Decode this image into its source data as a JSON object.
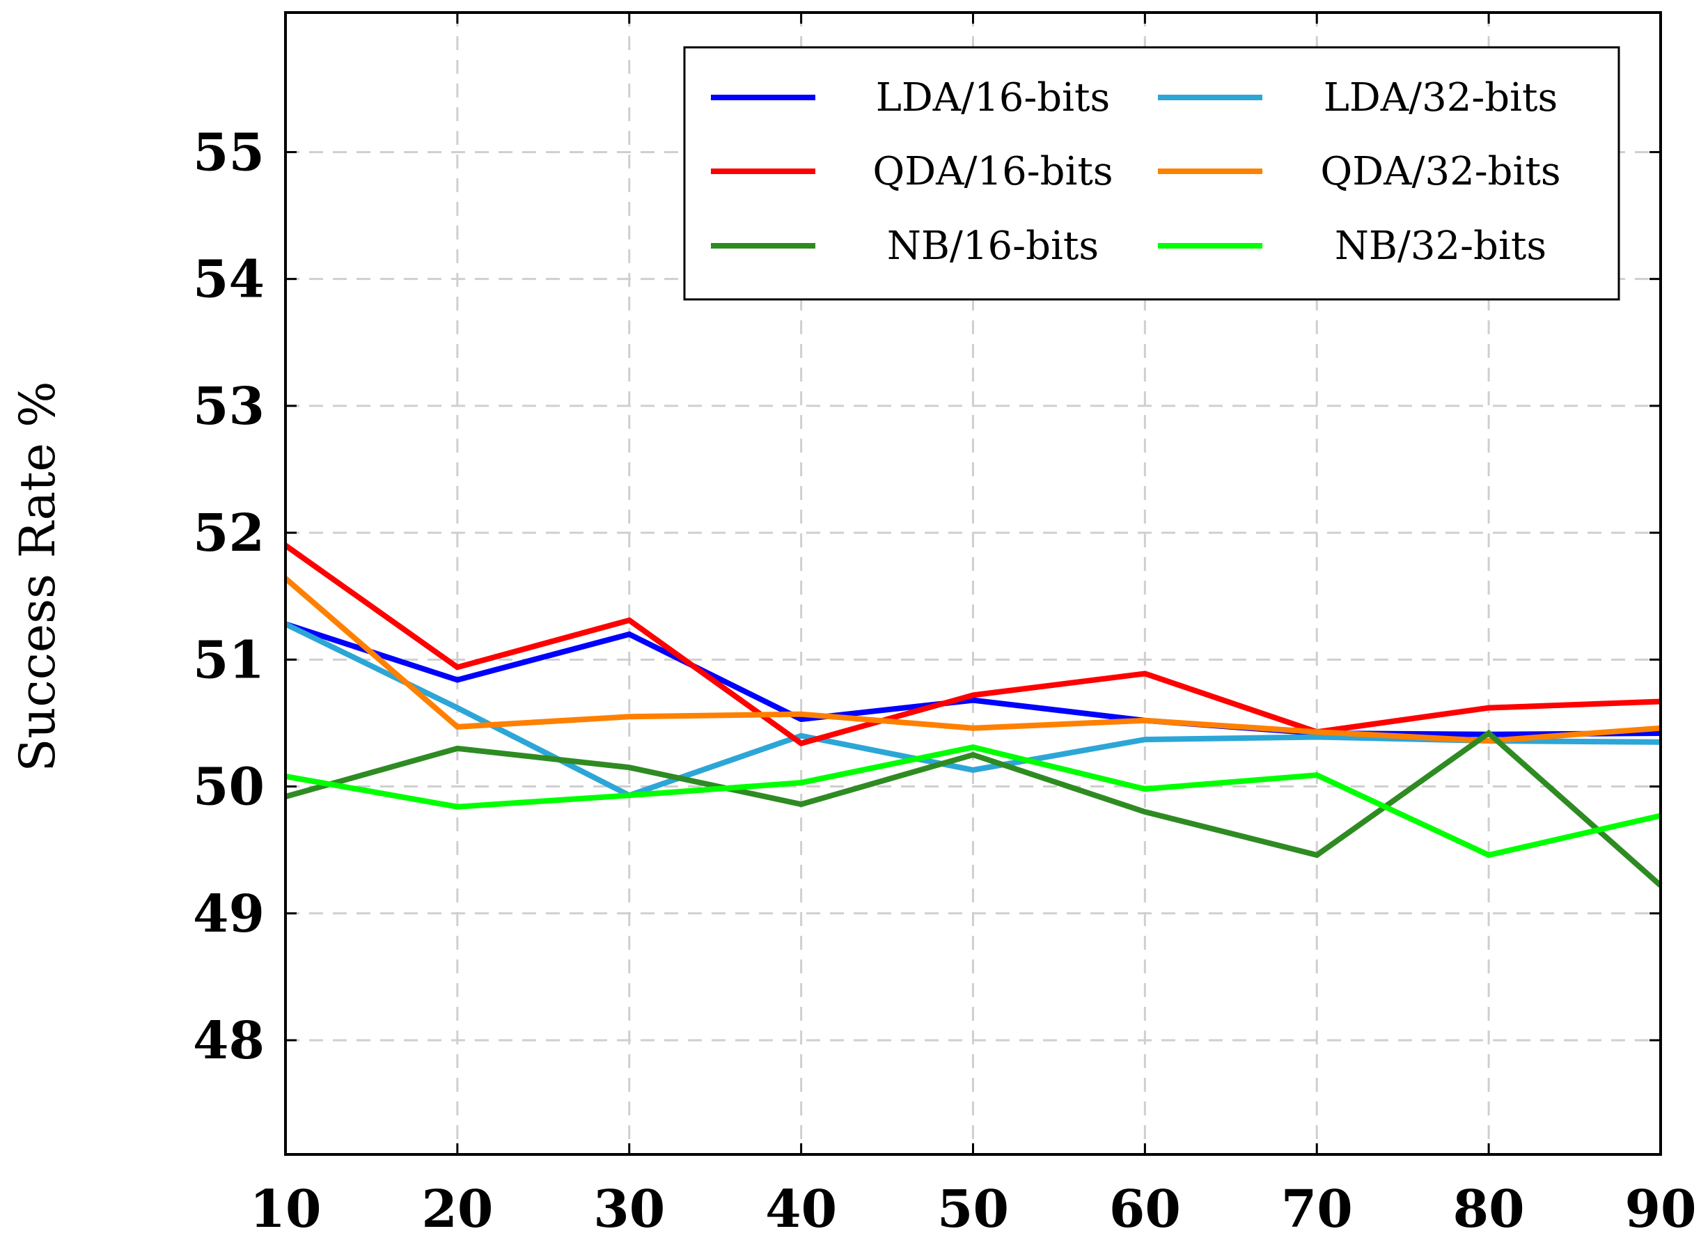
{
  "chart_data": {
    "type": "line",
    "title": "",
    "xlabel": "",
    "ylabel": "Success Rate %",
    "x": [
      10,
      20,
      30,
      40,
      50,
      60,
      70,
      80,
      90
    ],
    "xlim": [
      10,
      90
    ],
    "ylim": [
      47.1,
      56.1
    ],
    "yticks": [
      48,
      49,
      50,
      51,
      52,
      53,
      54,
      55
    ],
    "xticks": [
      10,
      20,
      30,
      40,
      50,
      60,
      70,
      80,
      90
    ],
    "grid": true,
    "legend_position": "top-right",
    "series": [
      {
        "name": "LDA/16-bits",
        "color": "#0000ff",
        "values": [
          51.28,
          50.84,
          51.2,
          50.53,
          50.68,
          50.52,
          50.42,
          50.41,
          50.42
        ]
      },
      {
        "name": "LDA/32-bits",
        "color": "#2ca6d6",
        "values": [
          51.28,
          50.62,
          49.93,
          50.4,
          50.13,
          50.37,
          50.39,
          50.36,
          50.35
        ]
      },
      {
        "name": "QDA/16-bits",
        "color": "#ff0000",
        "values": [
          51.9,
          50.94,
          51.31,
          50.34,
          50.72,
          50.89,
          50.43,
          50.62,
          50.67
        ]
      },
      {
        "name": "QDA/32-bits",
        "color": "#ff8000",
        "values": [
          51.64,
          50.47,
          50.55,
          50.57,
          50.46,
          50.52,
          50.43,
          50.36,
          50.46
        ]
      },
      {
        "name": "NB/16-bits",
        "color": "#2e8b22",
        "values": [
          49.92,
          50.3,
          50.15,
          49.86,
          50.25,
          49.8,
          49.46,
          50.42,
          49.22
        ]
      },
      {
        "name": "NB/32-bits",
        "color": "#00ff00",
        "values": [
          50.08,
          49.84,
          49.93,
          50.03,
          50.31,
          49.98,
          50.09,
          49.46,
          49.77
        ]
      }
    ]
  }
}
